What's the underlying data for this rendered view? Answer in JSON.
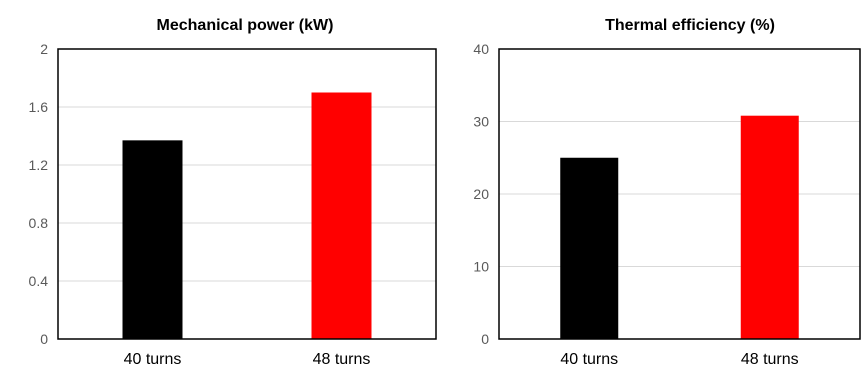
{
  "chart_data": [
    {
      "type": "bar",
      "title": "Mechanical power (kW)",
      "xlabel": "",
      "ylabel": "",
      "categories": [
        "40 turns",
        "48 turns"
      ],
      "values": [
        1.37,
        1.7
      ],
      "colors": [
        "#000000",
        "#ff0000"
      ],
      "ylim": [
        0,
        2
      ],
      "yticks": [
        "0",
        "0.4",
        "0.8",
        "1.2",
        "1.6",
        "2"
      ],
      "grid": true
    },
    {
      "type": "bar",
      "title": "Thermal efficiency (%)",
      "xlabel": "",
      "ylabel": "",
      "categories": [
        "40 turns",
        "48 turns"
      ],
      "values": [
        25.0,
        30.8
      ],
      "colors": [
        "#000000",
        "#ff0000"
      ],
      "ylim": [
        0,
        40
      ],
      "yticks": [
        "0",
        "10",
        "20",
        "30",
        "40"
      ],
      "grid": true
    }
  ]
}
